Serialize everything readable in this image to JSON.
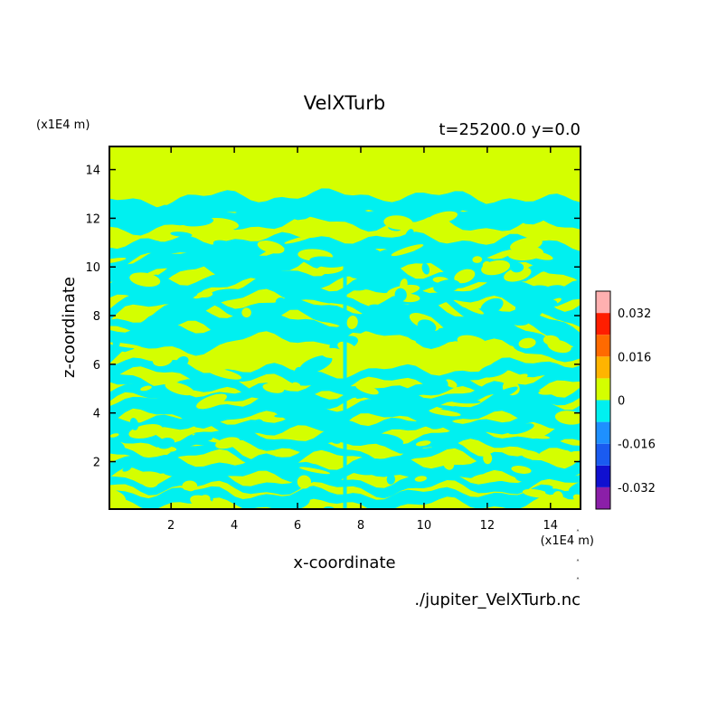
{
  "chart_data": {
    "type": "heatmap",
    "title": "VelXTurb",
    "subtitle": "t=25200.0 y=0.0",
    "xlabel": "x-coordinate",
    "ylabel": "z-coordinate",
    "x_unit": "(x1E4 m)",
    "y_unit": "(x1E4 m)",
    "source": "./jupiter_VelXTurb.nc",
    "xlim": [
      0.05,
      14.95
    ],
    "ylim": [
      0.05,
      14.95
    ],
    "x_ticks": [
      2,
      4,
      6,
      8,
      10,
      12,
      14
    ],
    "y_ticks": [
      2,
      4,
      6,
      8,
      10,
      12,
      14
    ],
    "colorbar": {
      "levels": [
        -0.04,
        -0.032,
        -0.024,
        -0.016,
        -0.008,
        0,
        0.008,
        0.016,
        0.024,
        0.032,
        0.04
      ],
      "colors": [
        "#8B1FA8",
        "#1010D0",
        "#1A5BF0",
        "#1E90FF",
        "#00F0F0",
        "#D4FF00",
        "#FFB400",
        "#FF6A00",
        "#FF1E00",
        "#FFB0B0"
      ],
      "tick_values": [
        0.032,
        0.016,
        0,
        -0.016,
        -0.032
      ],
      "tick_labels": [
        "0.032",
        "0.016",
        "0",
        "-0.016",
        "-0.032"
      ]
    },
    "field": {
      "background_color": "#D4FF00",
      "band_color": "#00F0F0",
      "quiet_above_z": 12.6,
      "bands_z": [
        12.3,
        11.9,
        10.6,
        10.0,
        9.5,
        8.8,
        8.2,
        7.7,
        7.2,
        6.6,
        6.0,
        5.4,
        4.8,
        4.2,
        3.6,
        3.0,
        2.4,
        1.8,
        1.2,
        0.6
      ]
    }
  }
}
